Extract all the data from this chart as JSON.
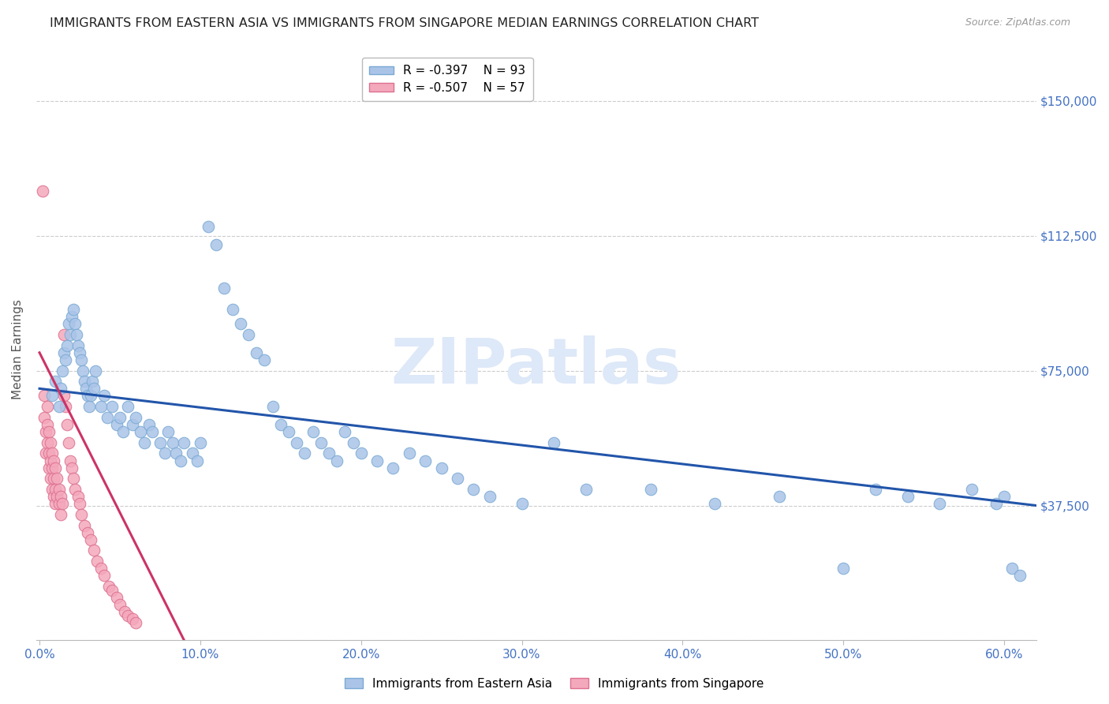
{
  "title": "IMMIGRANTS FROM EASTERN ASIA VS IMMIGRANTS FROM SINGAPORE MEDIAN EARNINGS CORRELATION CHART",
  "source": "Source: ZipAtlas.com",
  "ylabel": "Median Earnings",
  "ylim": [
    0,
    162000
  ],
  "xlim": [
    -0.002,
    0.62
  ],
  "series1_color": "#aac4e8",
  "series1_edge": "#7aaad4",
  "series1_label": "Immigrants from Eastern Asia",
  "series1_R": -0.397,
  "series1_N": 93,
  "series1_line_color": "#2255aa",
  "series2_color": "#f4a8bb",
  "series2_edge": "#dd7090",
  "series2_label": "Immigrants from Singapore",
  "series2_R": -0.507,
  "series2_N": 57,
  "series2_line_color": "#cc3366",
  "watermark": "ZIPatlas",
  "watermark_color": "#dde8f8",
  "grid_color": "#cccccc",
  "background_color": "#ffffff",
  "title_fontsize": 11.5,
  "axis_label_fontsize": 11,
  "tick_fontsize": 11,
  "legend_fontsize": 11,
  "series1_x": [
    0.008,
    0.01,
    0.012,
    0.013,
    0.014,
    0.015,
    0.016,
    0.017,
    0.018,
    0.019,
    0.02,
    0.021,
    0.022,
    0.023,
    0.024,
    0.025,
    0.026,
    0.027,
    0.028,
    0.029,
    0.03,
    0.031,
    0.032,
    0.033,
    0.034,
    0.035,
    0.038,
    0.04,
    0.042,
    0.045,
    0.048,
    0.05,
    0.052,
    0.055,
    0.058,
    0.06,
    0.063,
    0.065,
    0.068,
    0.07,
    0.075,
    0.078,
    0.08,
    0.083,
    0.085,
    0.088,
    0.09,
    0.095,
    0.098,
    0.1,
    0.105,
    0.11,
    0.115,
    0.12,
    0.125,
    0.13,
    0.135,
    0.14,
    0.145,
    0.15,
    0.155,
    0.16,
    0.165,
    0.17,
    0.175,
    0.18,
    0.185,
    0.19,
    0.195,
    0.2,
    0.21,
    0.22,
    0.23,
    0.24,
    0.25,
    0.26,
    0.27,
    0.28,
    0.3,
    0.32,
    0.34,
    0.38,
    0.42,
    0.46,
    0.5,
    0.52,
    0.54,
    0.56,
    0.58,
    0.595,
    0.6,
    0.605,
    0.61
  ],
  "series1_y": [
    68000,
    72000,
    65000,
    70000,
    75000,
    80000,
    78000,
    82000,
    88000,
    85000,
    90000,
    92000,
    88000,
    85000,
    82000,
    80000,
    78000,
    75000,
    72000,
    70000,
    68000,
    65000,
    68000,
    72000,
    70000,
    75000,
    65000,
    68000,
    62000,
    65000,
    60000,
    62000,
    58000,
    65000,
    60000,
    62000,
    58000,
    55000,
    60000,
    58000,
    55000,
    52000,
    58000,
    55000,
    52000,
    50000,
    55000,
    52000,
    50000,
    55000,
    115000,
    110000,
    98000,
    92000,
    88000,
    85000,
    80000,
    78000,
    65000,
    60000,
    58000,
    55000,
    52000,
    58000,
    55000,
    52000,
    50000,
    58000,
    55000,
    52000,
    50000,
    48000,
    52000,
    50000,
    48000,
    45000,
    42000,
    40000,
    38000,
    55000,
    42000,
    42000,
    38000,
    40000,
    20000,
    42000,
    40000,
    38000,
    42000,
    38000,
    40000,
    20000,
    18000
  ],
  "series2_x": [
    0.002,
    0.003,
    0.003,
    0.004,
    0.004,
    0.005,
    0.005,
    0.005,
    0.006,
    0.006,
    0.006,
    0.007,
    0.007,
    0.007,
    0.008,
    0.008,
    0.008,
    0.009,
    0.009,
    0.009,
    0.01,
    0.01,
    0.01,
    0.011,
    0.011,
    0.012,
    0.012,
    0.013,
    0.013,
    0.014,
    0.015,
    0.015,
    0.016,
    0.017,
    0.018,
    0.019,
    0.02,
    0.021,
    0.022,
    0.024,
    0.025,
    0.026,
    0.028,
    0.03,
    0.032,
    0.034,
    0.036,
    0.038,
    0.04,
    0.043,
    0.045,
    0.048,
    0.05,
    0.053,
    0.055,
    0.058,
    0.06
  ],
  "series2_y": [
    125000,
    68000,
    62000,
    58000,
    52000,
    65000,
    60000,
    55000,
    58000,
    52000,
    48000,
    55000,
    50000,
    45000,
    52000,
    48000,
    42000,
    50000,
    45000,
    40000,
    48000,
    42000,
    38000,
    45000,
    40000,
    42000,
    38000,
    40000,
    35000,
    38000,
    85000,
    68000,
    65000,
    60000,
    55000,
    50000,
    48000,
    45000,
    42000,
    40000,
    38000,
    35000,
    32000,
    30000,
    28000,
    25000,
    22000,
    20000,
    18000,
    15000,
    14000,
    12000,
    10000,
    8000,
    7000,
    6000,
    5000
  ],
  "series1_line_x0": 0.0,
  "series1_line_y0": 70000,
  "series1_line_x1": 0.62,
  "series1_line_y1": 37500,
  "series2_line_x0": 0.0,
  "series2_line_y0": 80000,
  "series2_line_x1": 0.09,
  "series2_line_y1": 0
}
